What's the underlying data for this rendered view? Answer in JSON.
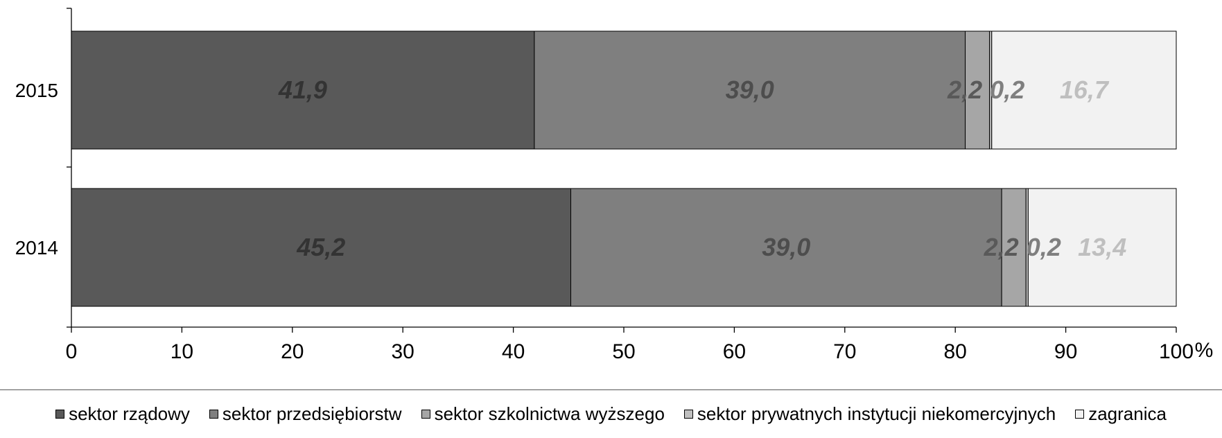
{
  "chart_data": {
    "type": "bar",
    "orientation": "horizontal",
    "stacked": true,
    "categories": [
      "2015",
      "2014"
    ],
    "series": [
      {
        "name": "sektor rządowy",
        "values": [
          41.9,
          45.2
        ],
        "color": "#595959",
        "label_color": "#333333"
      },
      {
        "name": "sektor przedsiębiorstw",
        "values": [
          39.0,
          39.0
        ],
        "color": "#7f7f7f",
        "label_color": "#4d4d4d"
      },
      {
        "name": "sektor szkolnictwa wyższego",
        "values": [
          2.2,
          2.2
        ],
        "color": "#a6a6a6",
        "label_color": "#595959"
      },
      {
        "name": "sektor prywatnych instytucji niekomercyjnych",
        "values": [
          0.2,
          0.2
        ],
        "color": "#bfbfbf",
        "label_color": "#7f7f7f"
      },
      {
        "name": "zagranica",
        "values": [
          16.7,
          13.4
        ],
        "color": "#f2f2f2",
        "label_color": "#bfbfbf"
      }
    ],
    "data_labels": [
      [
        "41,9",
        "39,0",
        "2,2",
        "0,2",
        "16,7"
      ],
      [
        "45,2",
        "39,0",
        "2,2",
        "0,2",
        "13,4"
      ]
    ],
    "xlim": [
      0,
      100
    ],
    "xticks": [
      "0",
      "10",
      "20",
      "30",
      "40",
      "50",
      "60",
      "70",
      "80",
      "90",
      "100"
    ],
    "xunit": "%",
    "grid": false,
    "legend": "bottom"
  }
}
